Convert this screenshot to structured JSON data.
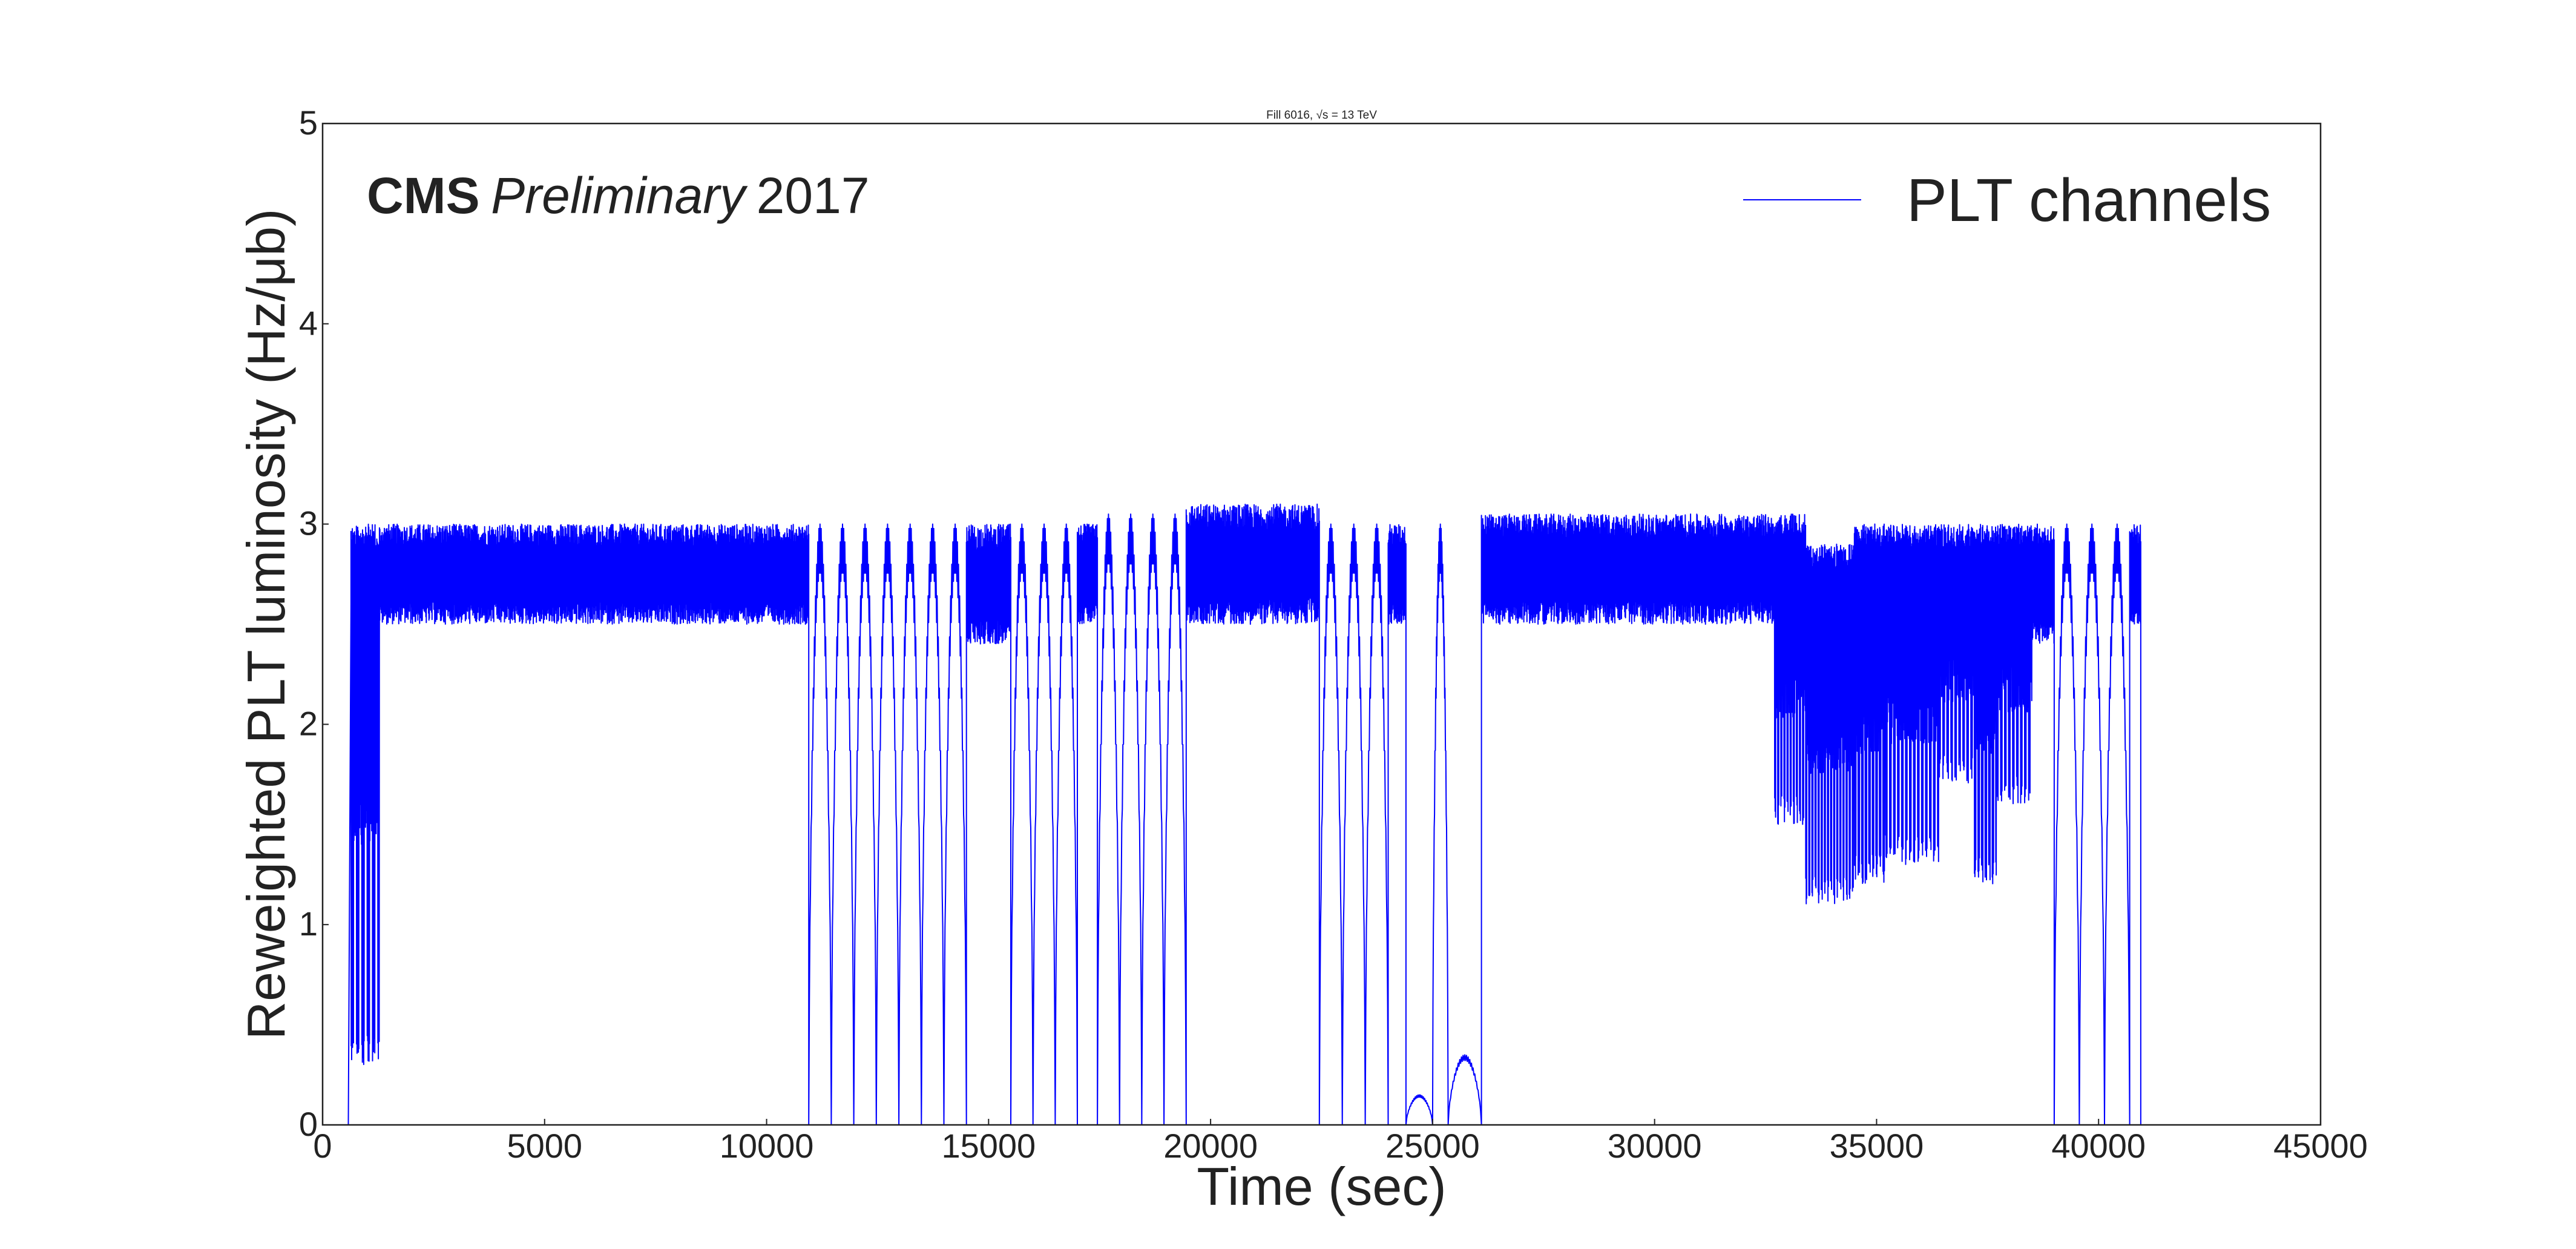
{
  "chart_data": {
    "type": "line",
    "title": "Fill 6016, √s = 13 TeV",
    "experiment": {
      "name": "CMS",
      "status": "Preliminary",
      "year": "2017"
    },
    "xlabel": "Time (sec)",
    "ylabel": "Reweighted PLT luminosity (Hz/μb)",
    "xlim": [
      0,
      45000
    ],
    "ylim": [
      0,
      5
    ],
    "x_ticks": [
      "0",
      "5000",
      "10000",
      "15000",
      "20000",
      "25000",
      "30000",
      "35000",
      "40000",
      "45000"
    ],
    "y_ticks": [
      "0",
      "1",
      "2",
      "3",
      "4",
      "5"
    ],
    "grid": false,
    "legend": {
      "position": "top-right",
      "entries": [
        "PLT channels"
      ]
    },
    "series": [
      {
        "name": "PLT channels",
        "color": "#0000ff",
        "segments": [
          {
            "x_start": 0,
            "x_end": 580,
            "mode": "zero"
          },
          {
            "x_start": 580,
            "x_end": 640,
            "mode": "ramp",
            "y_to": 2.6
          },
          {
            "x_start": 640,
            "x_end": 1280,
            "mode": "burst_deep",
            "low": 0.3,
            "high": 3.0,
            "period": 120
          },
          {
            "x_start": 1280,
            "x_end": 10950,
            "mode": "band",
            "low": 2.5,
            "high": 3.0
          },
          {
            "x_start": 10950,
            "x_end": 14500,
            "mode": "pulses",
            "peak": 3.0,
            "period": 500
          },
          {
            "x_start": 14500,
            "x_end": 15500,
            "mode": "band",
            "low": 2.4,
            "high": 3.0
          },
          {
            "x_start": 15500,
            "x_end": 17000,
            "mode": "pulses",
            "peak": 3.0,
            "period": 500
          },
          {
            "x_start": 17000,
            "x_end": 17450,
            "mode": "band",
            "low": 2.5,
            "high": 3.0
          },
          {
            "x_start": 17450,
            "x_end": 19450,
            "mode": "pulses",
            "peak": 3.05,
            "period": 500
          },
          {
            "x_start": 19450,
            "x_end": 22450,
            "mode": "band",
            "low": 2.5,
            "high": 3.1
          },
          {
            "x_start": 22450,
            "x_end": 24000,
            "mode": "pulses",
            "peak": 3.0,
            "period": 500
          },
          {
            "x_start": 24000,
            "x_end": 24400,
            "mode": "band",
            "low": 2.5,
            "high": 3.0
          },
          {
            "x_start": 24400,
            "x_end": 25000,
            "mode": "pulses",
            "peak": 0.15,
            "period": 600
          },
          {
            "x_start": 25000,
            "x_end": 25350,
            "mode": "pulses",
            "peak": 3.0,
            "period": 350
          },
          {
            "x_start": 25350,
            "x_end": 26100,
            "mode": "pulses",
            "peak": 0.35,
            "period": 750
          },
          {
            "x_start": 26100,
            "x_end": 32700,
            "mode": "band",
            "low": 2.5,
            "high": 3.05
          },
          {
            "x_start": 32700,
            "x_end": 33400,
            "mode": "burst_deep",
            "low": 1.5,
            "high": 3.05,
            "period": 70
          },
          {
            "x_start": 33400,
            "x_end": 34500,
            "mode": "burst_deep",
            "low": 1.1,
            "high": 2.9,
            "period": 70
          },
          {
            "x_start": 34500,
            "x_end": 35200,
            "mode": "burst_deep",
            "low": 1.2,
            "high": 3.0,
            "period": 80
          },
          {
            "x_start": 35200,
            "x_end": 36400,
            "mode": "burst_deep",
            "low": 1.3,
            "high": 3.0,
            "period": 90
          },
          {
            "x_start": 36400,
            "x_end": 37200,
            "mode": "burst_deep",
            "low": 1.7,
            "high": 3.0,
            "period": 90
          },
          {
            "x_start": 37200,
            "x_end": 37700,
            "mode": "burst_deep",
            "low": 1.2,
            "high": 3.0,
            "period": 80
          },
          {
            "x_start": 37700,
            "x_end": 38500,
            "mode": "burst_deep",
            "low": 1.6,
            "high": 3.0,
            "period": 90
          },
          {
            "x_start": 38500,
            "x_end": 39000,
            "mode": "band",
            "low": 2.4,
            "high": 3.0
          },
          {
            "x_start": 39000,
            "x_end": 40700,
            "mode": "pulses",
            "peak": 3.0,
            "period": 500
          },
          {
            "x_start": 40700,
            "x_end": 40950,
            "mode": "band",
            "low": 2.5,
            "high": 3.0
          },
          {
            "x_start": 40950,
            "x_end": 41300,
            "mode": "zero"
          }
        ]
      }
    ]
  }
}
